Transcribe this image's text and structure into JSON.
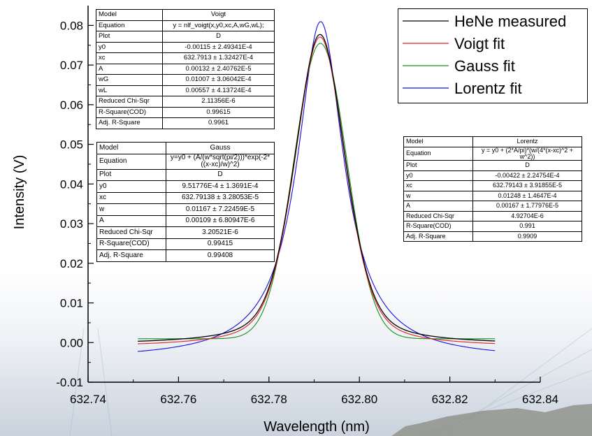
{
  "chart_data": {
    "type": "line",
    "xlabel": "Wavelength (nm)",
    "ylabel": "Intensity (V)",
    "xlim": [
      632.74,
      632.84
    ],
    "ylim": [
      -0.01,
      0.085
    ],
    "x_ticks": [
      "632.74",
      "632.76",
      "632.78",
      "632.80",
      "632.82",
      "632.84"
    ],
    "y_ticks": [
      "-0.01",
      "0.00",
      "0.01",
      "0.02",
      "0.03",
      "0.04",
      "0.05",
      "0.06",
      "0.07",
      "0.08"
    ],
    "x_range": [
      632.751,
      632.83
    ],
    "legend_position": "top-right",
    "series": [
      {
        "name": "HeNe measured",
        "color": "#000000",
        "model": "measured",
        "y0": -0.0005,
        "xc": 632.7913,
        "A": 0.00132,
        "wG": 0.01007,
        "wL": 0.00557
      },
      {
        "name": "Voigt fit",
        "color": "#e02020",
        "model": "voigt",
        "y0": -0.00115,
        "xc": 632.7913,
        "A": 0.00132,
        "wG": 0.01007,
        "wL": 0.00557
      },
      {
        "name": "Gauss fit",
        "color": "#1a8f1a",
        "model": "gauss",
        "y0": 0.000951776,
        "xc": 632.79138,
        "w": 0.01167,
        "A": 0.00109
      },
      {
        "name": "Lorentz fit",
        "color": "#1010e0",
        "model": "lorentz",
        "y0": -0.00422,
        "xc": 632.79143,
        "w": 0.01248,
        "A": 0.00167
      }
    ]
  },
  "tables": {
    "voigt": {
      "rows": [
        [
          "Model",
          "Voigt"
        ],
        [
          "Equation",
          "y = nlf_voigt(x,y0,xc,A,wG,wL);"
        ],
        [
          "Plot",
          "D"
        ],
        [
          "y0",
          "-0.00115 ± 2.49341E-4"
        ],
        [
          "xc",
          "632.7913 ± 1.32427E-4"
        ],
        [
          "A",
          "0.00132 ± 2.40762E-5"
        ],
        [
          "wG",
          "0.01007 ± 3.06042E-4"
        ],
        [
          "wL",
          "0.00557 ± 4.13724E-4"
        ],
        [
          "Reduced Chi-Sqr",
          "2.11356E-6"
        ],
        [
          "R-Square(COD)",
          "0.99615"
        ],
        [
          "Adj. R-Square",
          "0.9961"
        ]
      ]
    },
    "gauss": {
      "rows": [
        [
          "Model",
          "Gauss"
        ],
        [
          "Equation",
          "y=y0 + (A/(w*sqrt(pi/2)))*exp(-2*((x-xc)/w)^2)"
        ],
        [
          "Plot",
          "D"
        ],
        [
          "y0",
          "9.51776E-4 ± 1.3691E-4"
        ],
        [
          "xc",
          "632.79138 ± 3.28053E-5"
        ],
        [
          "w",
          "0.01167 ± 7.22459E-5"
        ],
        [
          "A",
          "0.00109 ± 6.80947E-6"
        ],
        [
          "Reduced Chi-Sqr",
          "3.20521E-6"
        ],
        [
          "R-Square(COD)",
          "0.99415"
        ],
        [
          "Adj. R-Square",
          "0.99408"
        ]
      ]
    },
    "lorentz": {
      "rows": [
        [
          "Model",
          "Lorentz"
        ],
        [
          "Equation",
          "y = y0 + (2*A/pi)*(w/(4*(x-xc)^2 + w^2))"
        ],
        [
          "Plot",
          "D"
        ],
        [
          "y0",
          "-0.00422 ± 2.24754E-4"
        ],
        [
          "xc",
          "632.79143 ± 3.91855E-5"
        ],
        [
          "w",
          "0.01248 ± 1.4647E-4"
        ],
        [
          "A",
          "0.00167 ± 1.77976E-5"
        ],
        [
          "Reduced Chi-Sqr",
          "4.92704E-6"
        ],
        [
          "R-Square(COD)",
          "0.991"
        ],
        [
          "Adj. R-Square",
          "0.9909"
        ]
      ]
    }
  }
}
